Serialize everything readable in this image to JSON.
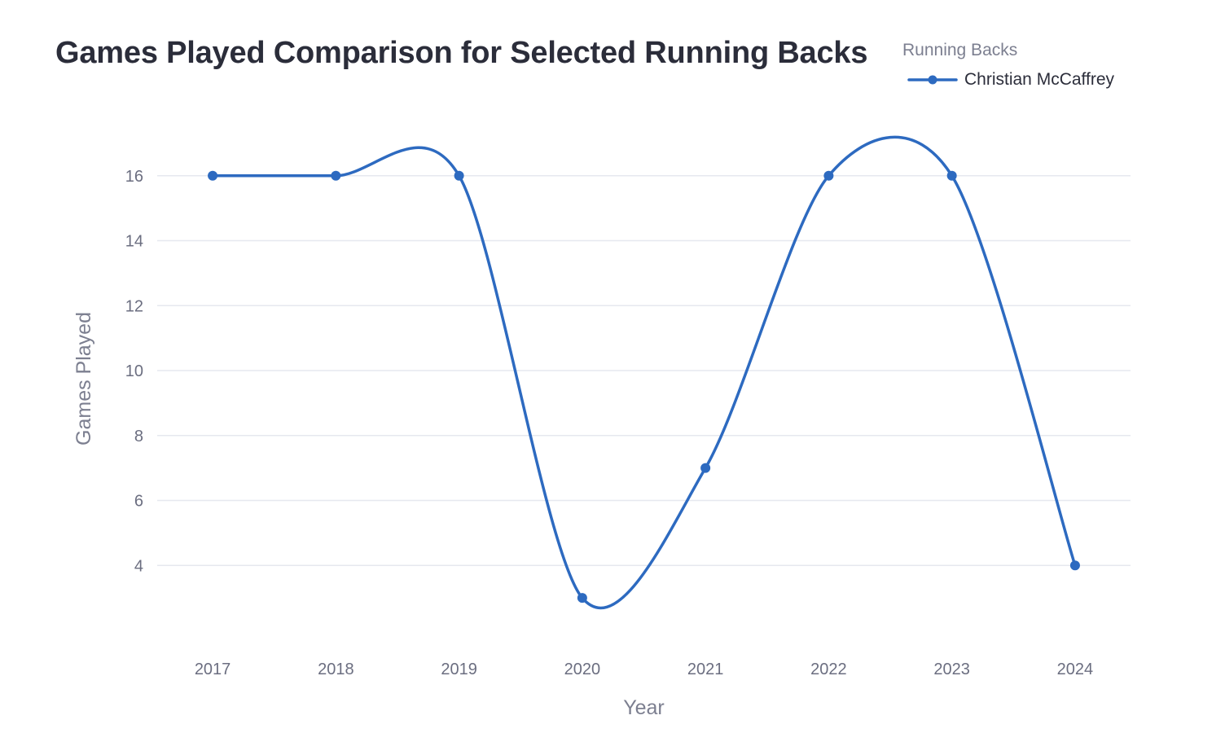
{
  "chart_data": {
    "type": "line",
    "title": "Games Played Comparison for Selected Running Backs",
    "xlabel": "Year",
    "ylabel": "Games Played",
    "x": [
      2017,
      2018,
      2019,
      2020,
      2021,
      2022,
      2023,
      2024
    ],
    "series": [
      {
        "name": "Christian McCaffrey",
        "values": [
          16,
          16,
          16,
          3,
          7,
          16,
          16,
          4
        ],
        "color": "#2d6ac0"
      }
    ],
    "yticks": [
      4,
      6,
      8,
      10,
      12,
      14,
      16
    ],
    "xlim": [
      2016.55,
      2024.45
    ],
    "ylim": [
      1.6,
      17.9
    ],
    "line_shape": "spline",
    "markers": true,
    "grid": "horizontal",
    "legend": {
      "title": "Running Backs",
      "placement": "top-right"
    },
    "colors": {
      "gridline": "#e6e8ef",
      "tick_text": "#6b6e80",
      "axis_title": "#7c7f90",
      "title_text": "#2b2d3a"
    }
  }
}
